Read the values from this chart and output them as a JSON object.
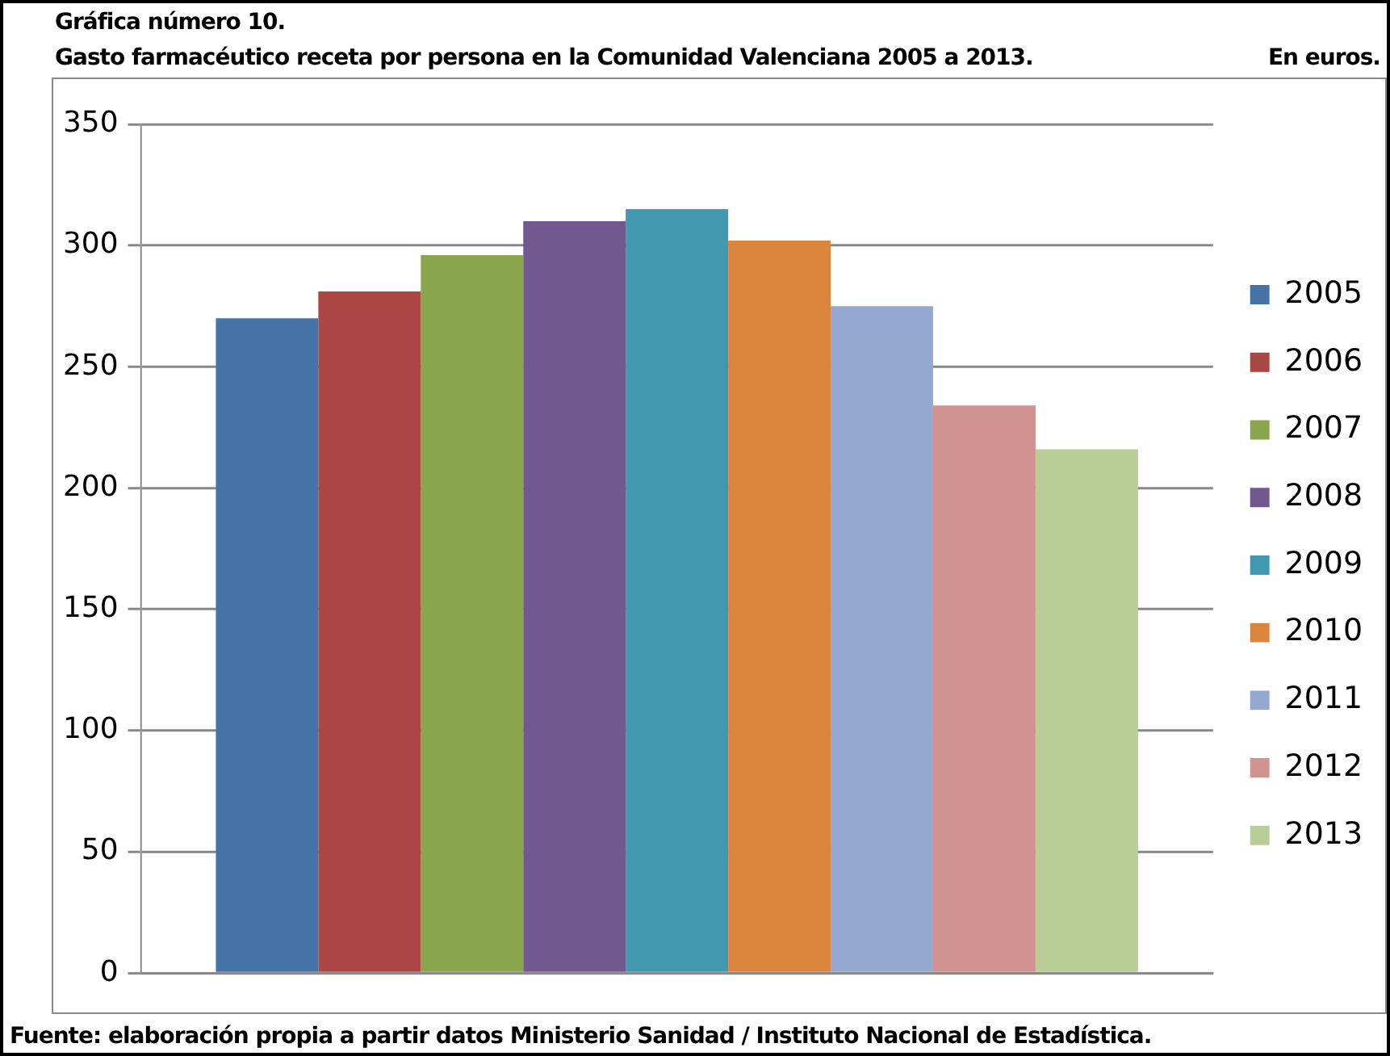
{
  "chart_data": {
    "type": "bar",
    "title": "Gráfica número 10.",
    "subtitle": "Gasto farmacéutico receta por persona en la Comunidad Valenciana 2005 a 2013.",
    "ylabel": "En euros.",
    "annotations": [
      "Fuente: elaboración propia a partir datos Ministerio Sanidad / Instituto Nacional de Estadística."
    ],
    "categories": [
      null
    ],
    "series": [
      {
        "name": "2005",
        "color": "#4572a7",
        "values": [
          270
        ]
      },
      {
        "name": "2006",
        "color": "#aa4643",
        "values": [
          281
        ]
      },
      {
        "name": "2007",
        "color": "#89a54e",
        "values": [
          296
        ]
      },
      {
        "name": "2008",
        "color": "#71588f",
        "values": [
          310
        ]
      },
      {
        "name": "2009",
        "color": "#4198af",
        "values": [
          315
        ]
      },
      {
        "name": "2010",
        "color": "#db843d",
        "values": [
          302
        ]
      },
      {
        "name": "2011",
        "color": "#93a9cf",
        "values": [
          275
        ]
      },
      {
        "name": "2012",
        "color": "#d19392",
        "values": [
          234
        ]
      },
      {
        "name": "2013",
        "color": "#b9cd96",
        "values": [
          216
        ]
      }
    ],
    "ylim": [
      0,
      350
    ],
    "yticks": [
      0,
      50,
      100,
      150,
      200,
      250,
      300,
      350
    ],
    "grid": "y",
    "legend": "right"
  }
}
